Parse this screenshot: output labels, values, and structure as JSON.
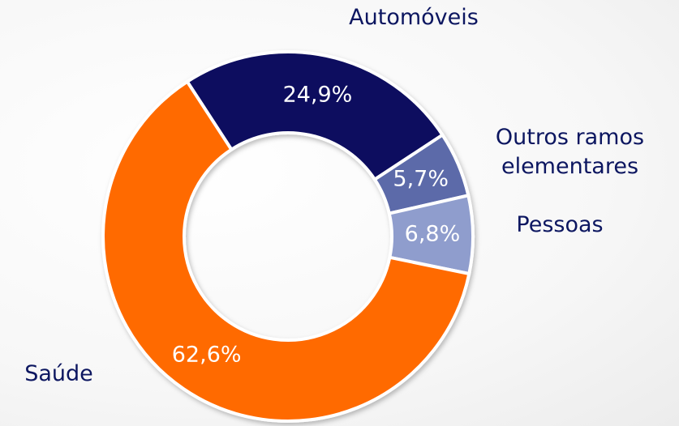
{
  "chart_data": {
    "type": "donut",
    "categories": [
      "Automóveis",
      "Outros ramos elementares",
      "Pessoas",
      "Saúde"
    ],
    "values": [
      24.9,
      5.7,
      6.8,
      62.6
    ],
    "value_labels": [
      "24,9%",
      "5,7%",
      "6,8%",
      "62,6%"
    ],
    "colors": [
      "#0c0c5e",
      "#5c6aa9",
      "#8f9dcd",
      "#ff6a00"
    ]
  }
}
